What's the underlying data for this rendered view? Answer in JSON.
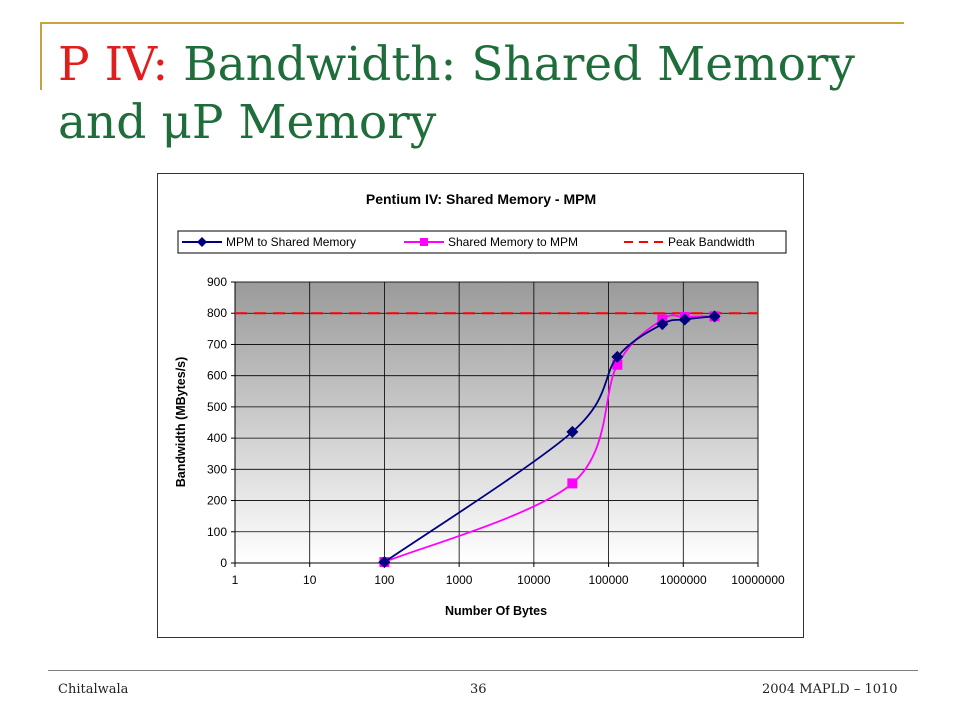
{
  "slide": {
    "title_prefix": "P IV:",
    "title_rest": " Bandwidth: Shared Memory and μP Memory",
    "footer_left": "Chitalwala",
    "footer_center": "36",
    "footer_right": "2004 MAPLD – 1010",
    "colors": {
      "title": "#1e6d3b",
      "title_prefix": "#e01e1e",
      "frame": "#c8a53c"
    }
  },
  "chart_data": {
    "type": "line",
    "title": "Pentium IV: Shared Memory - MPM",
    "xlabel": "Number Of Bytes",
    "ylabel": "Bandwidth (MBytes/s)",
    "x_scale": "log",
    "xlim": [
      1,
      10000000
    ],
    "ylim": [
      0,
      900
    ],
    "x_ticks": [
      "1",
      "10",
      "100",
      "1000",
      "10000",
      "100000",
      "1000000",
      "10000000"
    ],
    "y_ticks": [
      "0",
      "100",
      "200",
      "300",
      "400",
      "500",
      "600",
      "700",
      "800",
      "900"
    ],
    "grid": true,
    "legend_position": "top",
    "series": [
      {
        "name": "MPM to Shared Memory",
        "color": "#00007f",
        "marker": "diamond",
        "x": [
          100,
          32768,
          131072,
          524288,
          1048576,
          2621440
        ],
        "y": [
          3,
          420,
          660,
          765,
          780,
          790
        ]
      },
      {
        "name": "Shared Memory to MPM",
        "color": "#ff00ff",
        "marker": "square",
        "x": [
          100,
          32768,
          131072,
          524288,
          1048576,
          2621440
        ],
        "y": [
          3,
          255,
          635,
          780,
          788,
          790
        ]
      },
      {
        "name": "Peak Bandwidth",
        "color": "#ff0000",
        "marker": "none",
        "dashed": true,
        "x": [
          1,
          10000000
        ],
        "y": [
          800,
          800
        ]
      }
    ]
  }
}
